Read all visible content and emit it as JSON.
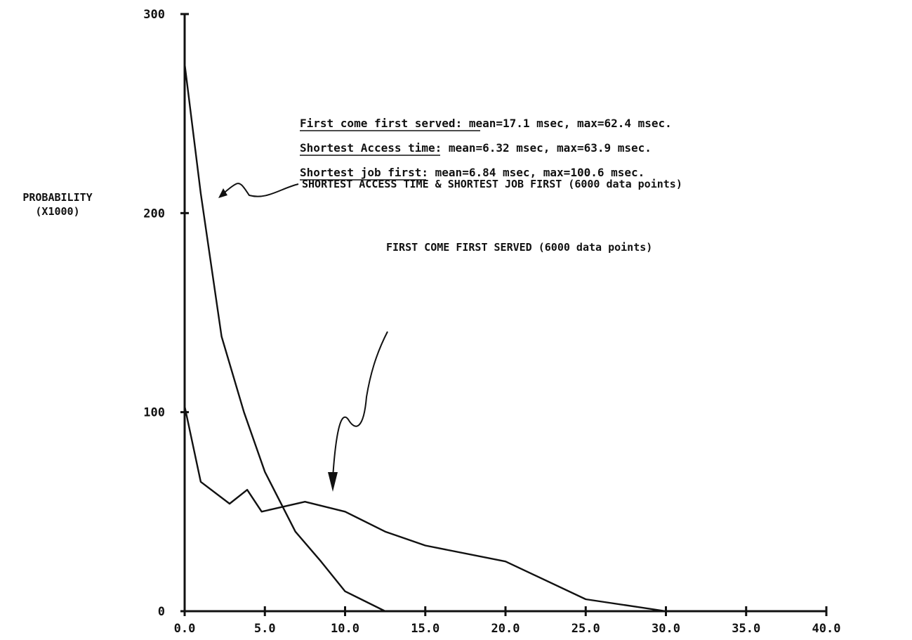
{
  "chart_data": {
    "type": "line",
    "title": "",
    "xlabel": "",
    "ylabel": [
      "PROBABILITY",
      "(X1000)"
    ],
    "xlim": [
      0,
      40
    ],
    "ylim": [
      0,
      300
    ],
    "x_ticks": [
      "0.0",
      "5.0",
      "10.0",
      "15.0",
      "20.0",
      "25.0",
      "30.0",
      "35.0",
      "40.0"
    ],
    "y_ticks": [
      "0",
      "100",
      "200",
      "300"
    ],
    "grid": false,
    "legend": "annotations",
    "series": [
      {
        "name": "SHORTEST ACCESS TIME & SHORTEST JOB FIRST (6000 data points)",
        "points": [
          {
            "x": 0.0,
            "y": 275
          },
          {
            "x": 1.0,
            "y": 210
          },
          {
            "x": 2.3,
            "y": 138
          },
          {
            "x": 3.7,
            "y": 100
          },
          {
            "x": 5.0,
            "y": 70
          },
          {
            "x": 6.9,
            "y": 40
          },
          {
            "x": 8.5,
            "y": 25
          },
          {
            "x": 10.0,
            "y": 10
          },
          {
            "x": 12.5,
            "y": 0
          }
        ]
      },
      {
        "name": "FIRST COME FIRST SERVED (6000 data points)",
        "points": [
          {
            "x": 0.0,
            "y": 103
          },
          {
            "x": 1.0,
            "y": 65
          },
          {
            "x": 2.8,
            "y": 54
          },
          {
            "x": 3.9,
            "y": 61
          },
          {
            "x": 4.8,
            "y": 50
          },
          {
            "x": 7.5,
            "y": 55
          },
          {
            "x": 10.0,
            "y": 50
          },
          {
            "x": 12.5,
            "y": 40
          },
          {
            "x": 15.0,
            "y": 33
          },
          {
            "x": 20.0,
            "y": 25
          },
          {
            "x": 25.0,
            "y": 6
          },
          {
            "x": 30.0,
            "y": 0
          },
          {
            "x": 40.0,
            "y": 0
          }
        ]
      }
    ],
    "annotations": {
      "series_labels": [
        "SHORTEST ACCESS TIME & SHORTEST JOB FIRST (6000 data points)",
        "FIRST COME FIRST SERVED (6000 data points)"
      ],
      "stats": [
        {
          "name": "First come first served",
          "detail": ": mean=17.1 msec, max=62.4 msec."
        },
        {
          "name": "Shortest Access time",
          "detail": ": mean=6.32 msec, max=63.9 msec."
        },
        {
          "name": "Shortest job first",
          "detail": ": mean=6.84 msec, max=100.6 msec."
        }
      ]
    }
  }
}
